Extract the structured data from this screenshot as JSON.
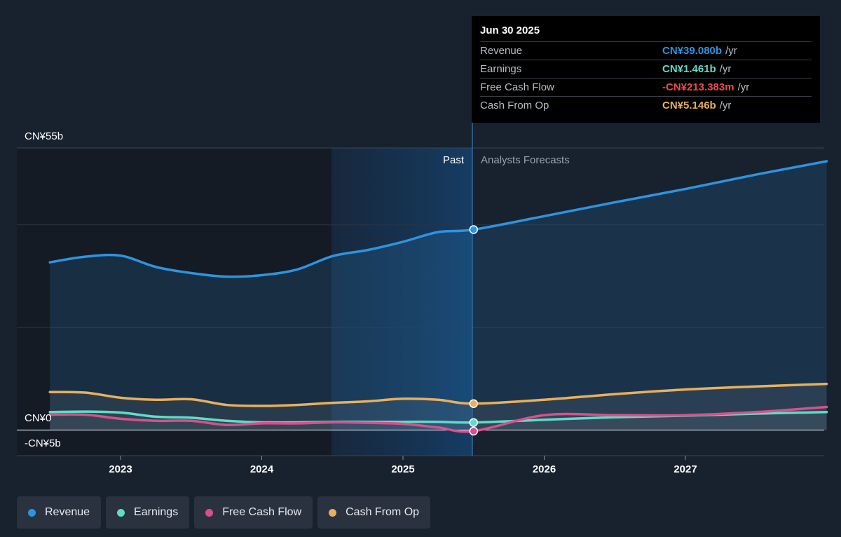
{
  "chart_data": {
    "type": "line",
    "x_unit": "year",
    "y_unit": "CN¥b",
    "ylim": [
      -5,
      55
    ],
    "y_tick_labels": [
      "CN¥55b",
      "CN¥0",
      "-CN¥5b"
    ],
    "x_ticks": [
      "2023",
      "2024",
      "2025",
      "2026",
      "2027"
    ],
    "region_labels": {
      "past": "Past",
      "forecast": "Analysts Forecasts"
    },
    "series": [
      {
        "name": "Revenue",
        "color": "#2d94e0",
        "points": [
          [
            2022.5,
            32.7
          ],
          [
            2022.75,
            33.8
          ],
          [
            2023.0,
            34.0
          ],
          [
            2023.25,
            31.8
          ],
          [
            2023.5,
            30.6
          ],
          [
            2023.75,
            29.9
          ],
          [
            2024.0,
            30.2
          ],
          [
            2024.25,
            31.3
          ],
          [
            2024.5,
            33.9
          ],
          [
            2024.75,
            35.1
          ],
          [
            2025.0,
            36.7
          ],
          [
            2025.25,
            38.6
          ],
          [
            2025.5,
            39.08
          ],
          [
            2026.0,
            41.7
          ],
          [
            2026.5,
            44.4
          ],
          [
            2027.0,
            47.0
          ],
          [
            2027.5,
            49.8
          ],
          [
            2028.0,
            52.4
          ]
        ]
      },
      {
        "name": "Earnings",
        "color": "#5eddc6",
        "points": [
          [
            2022.5,
            3.5
          ],
          [
            2022.75,
            3.6
          ],
          [
            2023.0,
            3.4
          ],
          [
            2023.25,
            2.6
          ],
          [
            2023.5,
            2.4
          ],
          [
            2023.75,
            1.8
          ],
          [
            2024.0,
            1.5
          ],
          [
            2024.25,
            1.5
          ],
          [
            2024.5,
            1.6
          ],
          [
            2024.75,
            1.6
          ],
          [
            2025.0,
            1.6
          ],
          [
            2025.25,
            1.6
          ],
          [
            2025.5,
            1.461
          ],
          [
            2026.0,
            2.0
          ],
          [
            2026.5,
            2.5
          ],
          [
            2027.0,
            2.8
          ],
          [
            2027.5,
            3.2
          ],
          [
            2028.0,
            3.5
          ]
        ]
      },
      {
        "name": "Free Cash Flow",
        "color": "#d94f8e",
        "points": [
          [
            2022.5,
            3.0
          ],
          [
            2022.75,
            3.0
          ],
          [
            2023.0,
            2.2
          ],
          [
            2023.25,
            1.8
          ],
          [
            2023.5,
            1.8
          ],
          [
            2023.75,
            1.0
          ],
          [
            2024.0,
            1.3
          ],
          [
            2024.25,
            1.3
          ],
          [
            2024.5,
            1.5
          ],
          [
            2024.75,
            1.4
          ],
          [
            2025.0,
            1.2
          ],
          [
            2025.25,
            0.5
          ],
          [
            2025.5,
            -0.213383
          ],
          [
            2026.0,
            2.9
          ],
          [
            2026.5,
            2.9
          ],
          [
            2027.0,
            2.9
          ],
          [
            2027.5,
            3.5
          ],
          [
            2028.0,
            4.5
          ]
        ]
      },
      {
        "name": "Cash From Op",
        "color": "#e8b05c",
        "points": [
          [
            2022.5,
            7.4
          ],
          [
            2022.75,
            7.3
          ],
          [
            2023.0,
            6.3
          ],
          [
            2023.25,
            5.9
          ],
          [
            2023.5,
            6.0
          ],
          [
            2023.75,
            4.9
          ],
          [
            2024.0,
            4.7
          ],
          [
            2024.25,
            4.9
          ],
          [
            2024.5,
            5.3
          ],
          [
            2024.75,
            5.6
          ],
          [
            2025.0,
            6.1
          ],
          [
            2025.25,
            5.9
          ],
          [
            2025.5,
            5.146
          ],
          [
            2026.0,
            5.9
          ],
          [
            2026.5,
            7.0
          ],
          [
            2027.0,
            7.9
          ],
          [
            2027.5,
            8.5
          ],
          [
            2028.0,
            9.0
          ]
        ]
      }
    ],
    "marker_x": 2025.5
  },
  "tooltip": {
    "date": "Jun 30 2025",
    "unit": "/yr",
    "rows": [
      {
        "label": "Revenue",
        "value": "CN¥39.080b",
        "color": "#2d94e0"
      },
      {
        "label": "Earnings",
        "value": "CN¥1.461b",
        "color": "#5eddc6"
      },
      {
        "label": "Free Cash Flow",
        "value": "-CN¥213.383m",
        "color": "#ef4b4b"
      },
      {
        "label": "Cash From Op",
        "value": "CN¥5.146b",
        "color": "#e8b05c"
      }
    ]
  },
  "legend": [
    {
      "label": "Revenue",
      "color": "#2d94e0"
    },
    {
      "label": "Earnings",
      "color": "#5eddc6"
    },
    {
      "label": "Free Cash Flow",
      "color": "#d94f8e"
    },
    {
      "label": "Cash From Op",
      "color": "#e8b05c"
    }
  ]
}
